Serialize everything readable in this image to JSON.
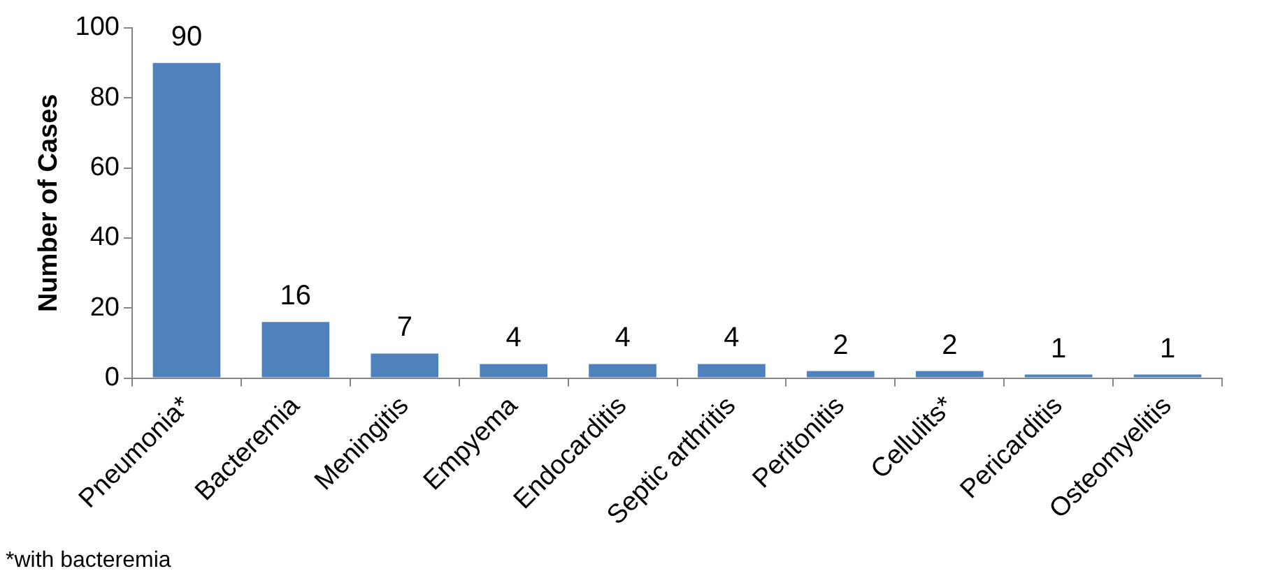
{
  "chart_data": {
    "type": "bar",
    "ylabel": "Number of Cases",
    "categories": [
      "Pneumonia*",
      "Bacteremia",
      "Meningitis",
      "Empyema",
      "Endocarditis",
      "Septic arthritis",
      "Peritonitis",
      "Cellulits*",
      "Pericarditis",
      "Osteomyelitis"
    ],
    "values": [
      90,
      16,
      7,
      4,
      4,
      4,
      2,
      2,
      1,
      1
    ],
    "color": "#4f81bd",
    "ylim": [
      0,
      100
    ],
    "yticks": [
      0,
      20,
      40,
      60,
      80,
      100
    ],
    "grid": false,
    "legend": false,
    "data_labels": true,
    "annotations": [
      "*with bacteremia"
    ]
  }
}
